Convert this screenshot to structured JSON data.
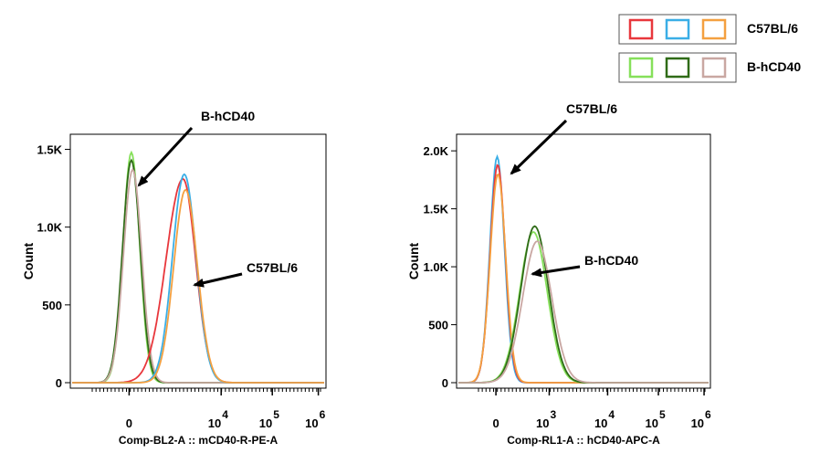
{
  "legend": {
    "rows": [
      {
        "label": "C57BL/6",
        "colors": [
          "#e8373c",
          "#3aaee6",
          "#f4a040"
        ]
      },
      {
        "label": "B-hCD40",
        "colors": [
          "#86e05a",
          "#2f6b17",
          "#c9a7a2"
        ]
      }
    ]
  },
  "chart_data": [
    {
      "type": "area",
      "xlabel": "Comp-BL2-A :: mCD40-R-PE-A",
      "ylabel": "Count",
      "y_ticks": [
        "0",
        "500",
        "1.0K",
        "1.5K"
      ],
      "y_tick_values": [
        0,
        500,
        1000,
        1500
      ],
      "ylim": [
        0,
        1550
      ],
      "x_scale": "biexponential",
      "x_ticks": [
        {
          "pos": 0.23,
          "base": "0",
          "sup": ""
        },
        {
          "pos": 0.59,
          "base": "10",
          "sup": "4"
        },
        {
          "pos": 0.79,
          "base": "10",
          "sup": "5"
        },
        {
          "pos": 0.97,
          "base": "10",
          "sup": "6"
        }
      ],
      "xlim_pos": [
        0,
        1
      ],
      "series": [
        {
          "name": "B-hCD40",
          "color": "#86e05a",
          "center": 0.235,
          "width": 0.033,
          "peak": 1480
        },
        {
          "name": "B-hCD40",
          "color": "#2f6b17",
          "center": 0.235,
          "width": 0.035,
          "peak": 1430
        },
        {
          "name": "B-hCD40",
          "color": "#c9a7a2",
          "center": 0.24,
          "width": 0.036,
          "peak": 1370
        },
        {
          "name": "C57BL/6",
          "color": "#e8373c",
          "center": 0.44,
          "width": 0.05,
          "peak": 1310,
          "lefttail": 0.09
        },
        {
          "name": "C57BL/6",
          "color": "#3aaee6",
          "center": 0.445,
          "width": 0.047,
          "peak": 1340
        },
        {
          "name": "C57BL/6",
          "color": "#f4a040",
          "center": 0.45,
          "width": 0.047,
          "peak": 1240
        }
      ],
      "annotations": [
        {
          "text": "B-hCD40",
          "target_series": "B-hCD40"
        },
        {
          "text": "C57BL/6",
          "target_series": "C57BL/6"
        }
      ]
    },
    {
      "type": "area",
      "xlabel": "Comp-RL1-A :: hCD40-APC-A",
      "ylabel": "Count",
      "y_ticks": [
        "0",
        "500",
        "1.0K",
        "1.5K",
        "2.0K"
      ],
      "y_tick_values": [
        0,
        500,
        1000,
        1500,
        2000
      ],
      "ylim": [
        0,
        2080
      ],
      "x_scale": "biexponential",
      "x_ticks": [
        {
          "pos": 0.155,
          "base": "0",
          "sup": ""
        },
        {
          "pos": 0.365,
          "base": "10",
          "sup": "3"
        },
        {
          "pos": 0.595,
          "base": "10",
          "sup": "4"
        },
        {
          "pos": 0.795,
          "base": "10",
          "sup": "5"
        },
        {
          "pos": 0.975,
          "base": "10",
          "sup": "6"
        }
      ],
      "xlim_pos": [
        0,
        1
      ],
      "series": [
        {
          "name": "C57BL/6",
          "color": "#3aaee6",
          "center": 0.155,
          "width": 0.029,
          "peak": 1950
        },
        {
          "name": "C57BL/6",
          "color": "#e8373c",
          "center": 0.157,
          "width": 0.03,
          "peak": 1880
        },
        {
          "name": "C57BL/6",
          "color": "#f4a040",
          "center": 0.158,
          "width": 0.031,
          "peak": 1800
        },
        {
          "name": "B-hCD40",
          "color": "#86e05a",
          "center": 0.3,
          "width": 0.055,
          "peak": 1300
        },
        {
          "name": "B-hCD40",
          "color": "#2f6b17",
          "center": 0.305,
          "width": 0.055,
          "peak": 1350
        },
        {
          "name": "B-hCD40",
          "color": "#c9a7a2",
          "center": 0.315,
          "width": 0.058,
          "peak": 1220
        }
      ],
      "annotations": [
        {
          "text": "C57BL/6",
          "target_series": "C57BL/6"
        },
        {
          "text": "B-hCD40",
          "target_series": "B-hCD40"
        }
      ]
    }
  ]
}
